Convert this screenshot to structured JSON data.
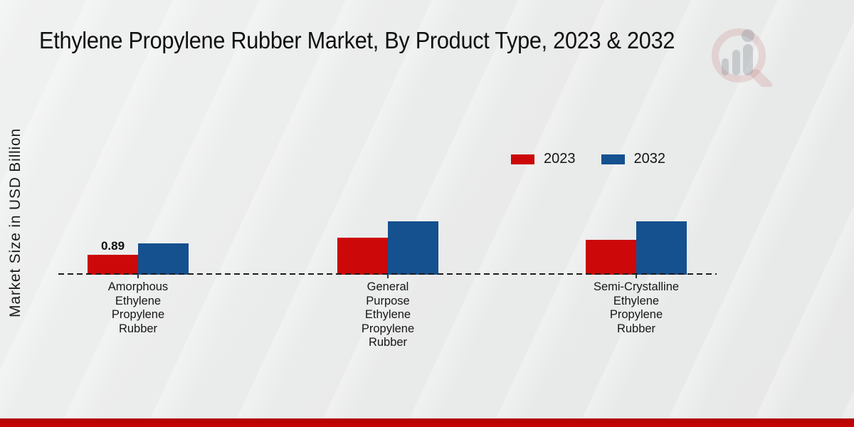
{
  "page": {
    "title": "Ethylene Propylene Rubber Market, By Product Type, 2023 & 2032"
  },
  "y_axis": {
    "label": "Market Size in USD Billion"
  },
  "legend": [
    {
      "label": "2023",
      "color": "#cc0808"
    },
    {
      "label": "2032",
      "color": "#15508f"
    }
  ],
  "colors": {
    "series_2023": "#cc0808",
    "series_2032": "#15508f",
    "footer_strip": "#c00404",
    "background": "#eaebeb"
  },
  "chart_data": {
    "type": "bar",
    "title": "Ethylene Propylene Rubber Market, By Product Type, 2023 & 2032",
    "xlabel": "",
    "ylabel": "Market Size in USD Billion",
    "categories": [
      "Amorphous Ethylene Propylene Rubber",
      "General Purpose Ethylene Propylene Rubber",
      "Semi-Crystalline Ethylene Propylene Rubber"
    ],
    "category_label_lines": [
      [
        "Amorphous",
        "Ethylene",
        "Propylene",
        "Rubber"
      ],
      [
        "General",
        "Purpose",
        "Ethylene",
        "Propylene",
        "Rubber"
      ],
      [
        "Semi-Crystalline",
        "Ethylene",
        "Propylene",
        "Rubber"
      ]
    ],
    "series": [
      {
        "name": "2023",
        "color": "#cc0808",
        "values": [
          0.89,
          1.65,
          1.56
        ]
      },
      {
        "name": "2032",
        "color": "#15508f",
        "values": [
          1.4,
          2.38,
          2.38
        ]
      }
    ],
    "bar_value_labels": [
      [
        "0.89",
        "",
        ""
      ],
      [
        "",
        "",
        ""
      ]
    ],
    "ylim": [
      0,
      2.6
    ],
    "grid": false,
    "legend_position": "upper-right-inside",
    "baseline_style": "dashed",
    "note": "Only the first 2023 bar carries a printed value label (0.89); other values estimated from bar heights."
  },
  "logo": {
    "name": "market-research-magnifier-logo"
  }
}
